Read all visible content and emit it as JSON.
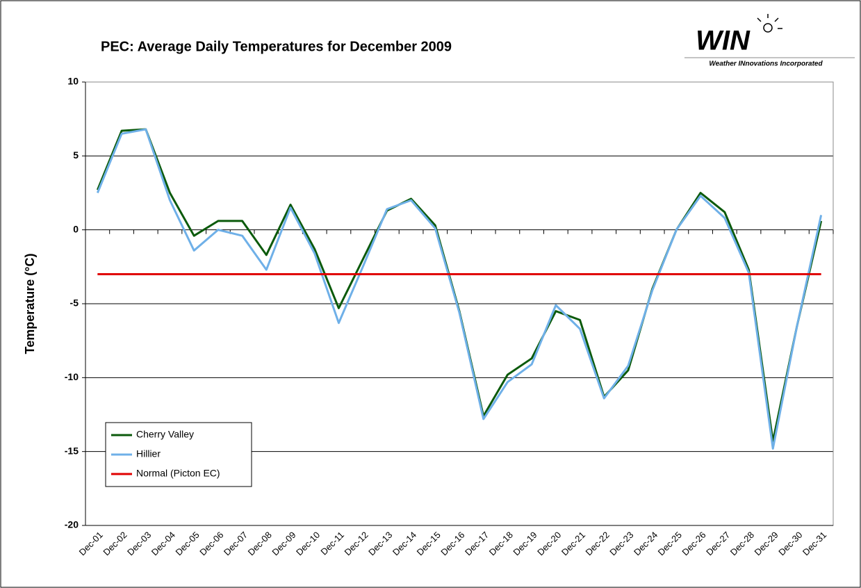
{
  "chart_data": {
    "type": "line",
    "title": "PEC: Average Daily Temperatures for December 2009",
    "y_label": "Temperature (°C)",
    "logo": {
      "name": "WIN",
      "tagline": "Weather INnovations Incorporated"
    },
    "categories": [
      "Dec-01",
      "Dec-02",
      "Dec-03",
      "Dec-04",
      "Dec-05",
      "Dec-06",
      "Dec-07",
      "Dec-08",
      "Dec-09",
      "Dec-10",
      "Dec-11",
      "Dec-12",
      "Dec-13",
      "Dec-14",
      "Dec-15",
      "Dec-16",
      "Dec-17",
      "Dec-18",
      "Dec-19",
      "Dec-20",
      "Dec-21",
      "Dec-22",
      "Dec-23",
      "Dec-24",
      "Dec-25",
      "Dec-26",
      "Dec-27",
      "Dec-28",
      "Dec-29",
      "Dec-30",
      "Dec-31"
    ],
    "series": [
      {
        "name": "Cherry Valley",
        "color": "#0b5a0b",
        "values": [
          2.7,
          6.7,
          6.8,
          2.5,
          -0.4,
          0.6,
          0.6,
          -1.7,
          1.7,
          -1.3,
          -5.3,
          -2.0,
          1.3,
          2.1,
          0.3,
          -5.5,
          -12.6,
          -9.8,
          -8.7,
          -5.5,
          -6.1,
          -11.3,
          -9.5,
          -4.0,
          0.0,
          2.5,
          1.2,
          -2.7,
          -14.3,
          -6.5,
          0.6
        ]
      },
      {
        "name": "Hillier",
        "color": "#6fb0e8",
        "values": [
          2.5,
          6.5,
          6.8,
          2.0,
          -1.4,
          0.0,
          -0.4,
          -2.7,
          1.5,
          -1.6,
          -6.3,
          -2.5,
          1.4,
          2.0,
          0.1,
          -5.6,
          -12.8,
          -10.3,
          -9.1,
          -5.1,
          -6.7,
          -11.4,
          -9.2,
          -4.1,
          0.0,
          2.3,
          0.8,
          -2.9,
          -14.8,
          -6.5,
          1.0
        ]
      },
      {
        "name": "Normal (Picton EC)",
        "color": "#e00000",
        "values": [
          -3,
          -3,
          -3,
          -3,
          -3,
          -3,
          -3,
          -3,
          -3,
          -3,
          -3,
          -3,
          -3,
          -3,
          -3,
          -3,
          -3,
          -3,
          -3,
          -3,
          -3,
          -3,
          -3,
          -3,
          -3,
          -3,
          -3,
          -3,
          -3,
          -3,
          -3
        ]
      }
    ],
    "ylim": [
      -20,
      10
    ],
    "yticks": [
      10,
      5,
      0,
      -5,
      -10,
      -15,
      -20
    ],
    "grid": true,
    "legend": "lower left"
  }
}
